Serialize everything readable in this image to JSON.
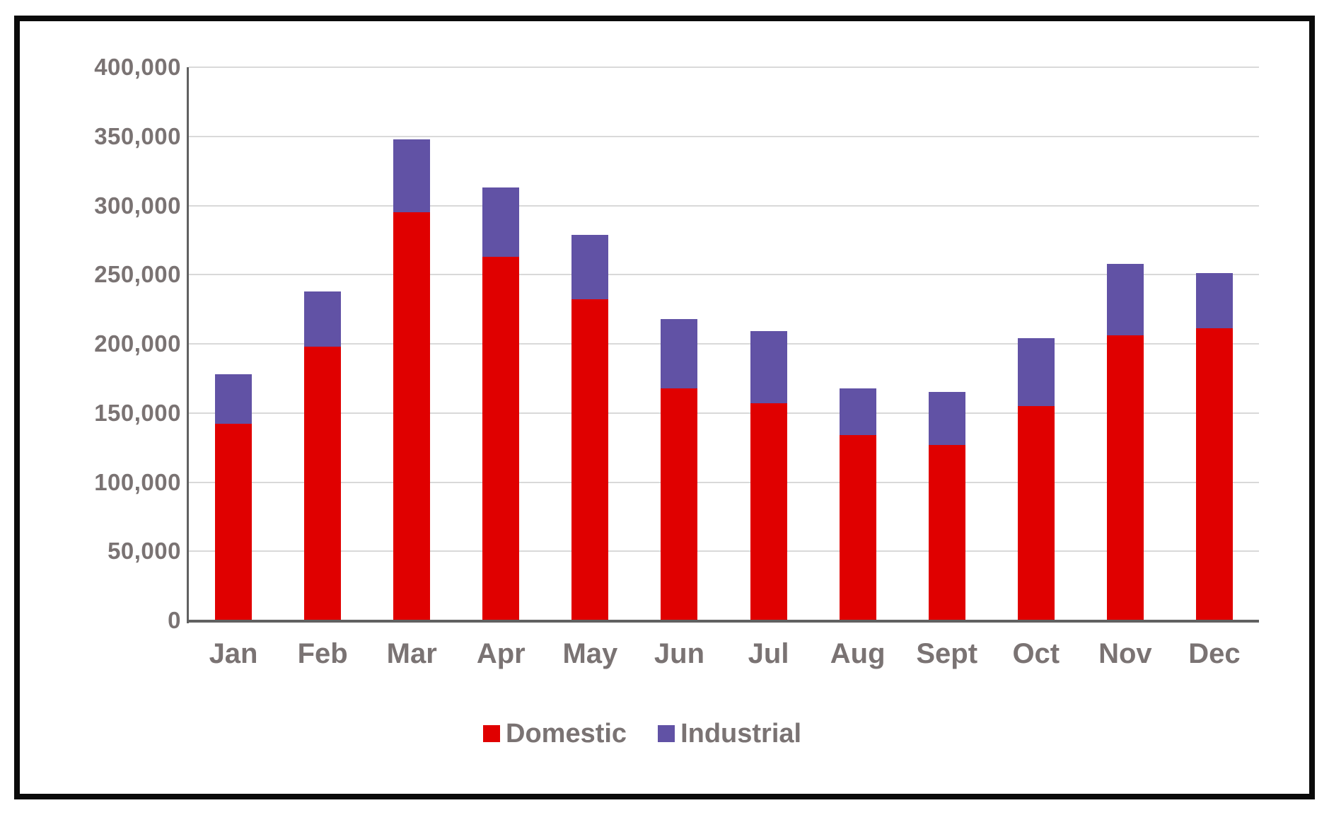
{
  "chart_data": {
    "type": "bar",
    "stacked": true,
    "title": "",
    "xlabel": "",
    "ylabel": "",
    "categories": [
      "Jan",
      "Feb",
      "Mar",
      "Apr",
      "May",
      "Jun",
      "Jul",
      "Aug",
      "Sept",
      "Oct",
      "Nov",
      "Dec"
    ],
    "series": [
      {
        "name": "Domestic",
        "color": "#e00000",
        "values": [
          142000,
          198000,
          295000,
          263000,
          232000,
          168000,
          157000,
          134000,
          127000,
          155000,
          206000,
          211000
        ]
      },
      {
        "name": "Industrial",
        "color": "#6152a5",
        "values": [
          36000,
          40000,
          53000,
          50000,
          47000,
          50000,
          52000,
          34000,
          38000,
          49000,
          52000,
          40000
        ]
      }
    ],
    "stack_totals": [
      178000,
      238000,
      348000,
      313000,
      279000,
      218000,
      209000,
      168000,
      165000,
      204000,
      258000,
      251000
    ],
    "ylim": [
      0,
      400000
    ],
    "ytick_interval": 50000,
    "ytick_labels": [
      "0",
      "50,000",
      "100,000",
      "150,000",
      "200,000",
      "250,000",
      "300,000",
      "350,000",
      "400,000"
    ],
    "grid": true,
    "legend_position": "bottom"
  }
}
